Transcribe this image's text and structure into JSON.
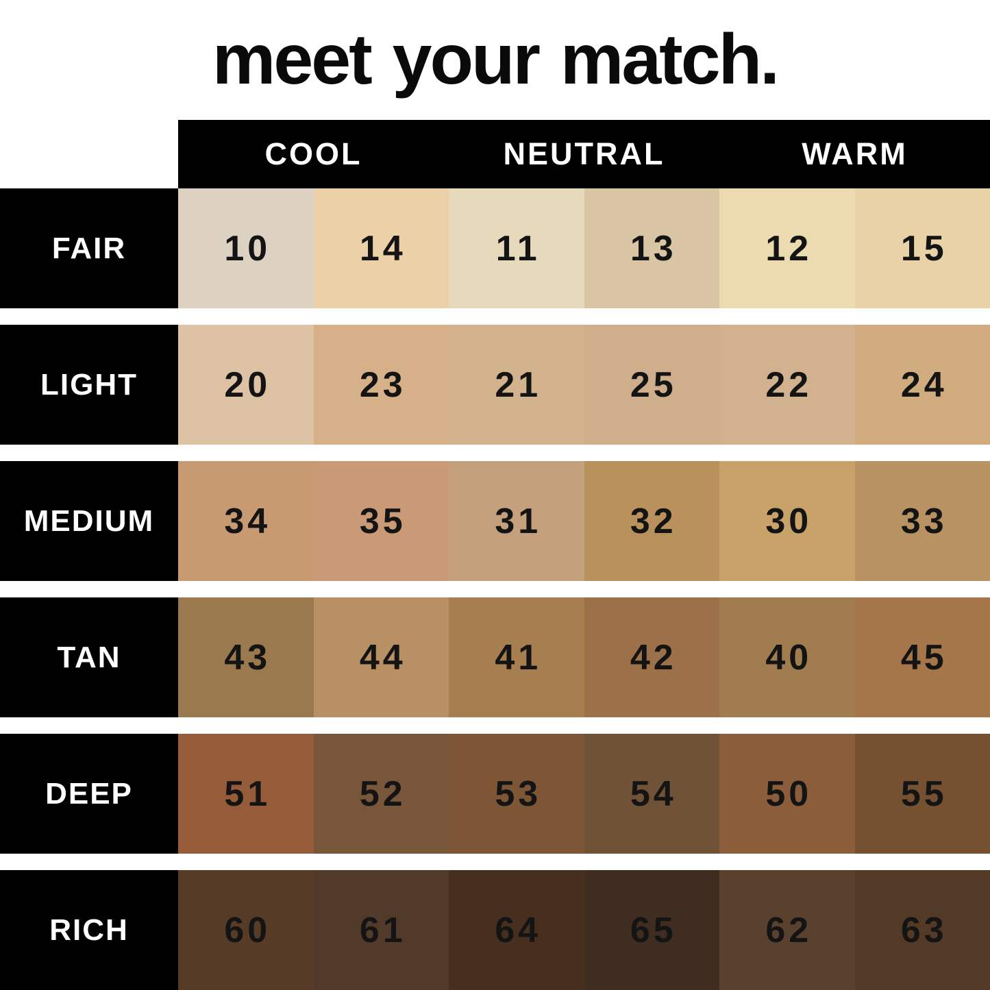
{
  "chart_data": {
    "type": "table",
    "title": "meet your match.",
    "column_groups": [
      "COOL",
      "NEUTRAL",
      "WARM"
    ],
    "row_labels": [
      "FAIR",
      "LIGHT",
      "MEDIUM",
      "TAN",
      "DEEP",
      "RICH"
    ],
    "rows": [
      {
        "label": "FAIR",
        "cells": [
          {
            "shade": "10",
            "color": "#ddd1c2"
          },
          {
            "shade": "14",
            "color": "#ecd0a8"
          },
          {
            "shade": "11",
            "color": "#e7d9bc"
          },
          {
            "shade": "13",
            "color": "#d9c5a4"
          },
          {
            "shade": "12",
            "color": "#ecdab0"
          },
          {
            "shade": "15",
            "color": "#e9d2a8"
          }
        ]
      },
      {
        "label": "LIGHT",
        "cells": [
          {
            "shade": "20",
            "color": "#ddc3a3"
          },
          {
            "shade": "23",
            "color": "#d5b088"
          },
          {
            "shade": "21",
            "color": "#d3b38e"
          },
          {
            "shade": "25",
            "color": "#cfae8b"
          },
          {
            "shade": "22",
            "color": "#d2b28e"
          },
          {
            "shade": "24",
            "color": "#d0ac7e"
          }
        ]
      },
      {
        "label": "MEDIUM",
        "cells": [
          {
            "shade": "34",
            "color": "#c79a72"
          },
          {
            "shade": "35",
            "color": "#ca9a77"
          },
          {
            "shade": "31",
            "color": "#c4a07c"
          },
          {
            "shade": "32",
            "color": "#b8915c"
          },
          {
            "shade": "30",
            "color": "#c9a269"
          },
          {
            "shade": "33",
            "color": "#b99264"
          }
        ]
      },
      {
        "label": "TAN",
        "cells": [
          {
            "shade": "43",
            "color": "#9b794e"
          },
          {
            "shade": "44",
            "color": "#b98f64"
          },
          {
            "shade": "41",
            "color": "#a67e4f"
          },
          {
            "shade": "42",
            "color": "#9c7048"
          },
          {
            "shade": "40",
            "color": "#a07c4f"
          },
          {
            "shade": "45",
            "color": "#a5764a"
          }
        ]
      },
      {
        "label": "DEEP",
        "cells": [
          {
            "shade": "51",
            "color": "#965c3a"
          },
          {
            "shade": "52",
            "color": "#775639"
          },
          {
            "shade": "53",
            "color": "#7d5635"
          },
          {
            "shade": "54",
            "color": "#705236"
          },
          {
            "shade": "50",
            "color": "#8c5d3a"
          },
          {
            "shade": "55",
            "color": "#755031"
          }
        ]
      },
      {
        "label": "RICH",
        "cells": [
          {
            "shade": "60",
            "color": "#563c27"
          },
          {
            "shade": "61",
            "color": "#523a2a"
          },
          {
            "shade": "64",
            "color": "#462f1e"
          },
          {
            "shade": "65",
            "color": "#3e2d20"
          },
          {
            "shade": "62",
            "color": "#5a412d"
          },
          {
            "shade": "63",
            "color": "#533a26"
          }
        ]
      }
    ],
    "layout": {
      "legend_position": "none",
      "grid": "off",
      "label_column_color": "#000000",
      "header_bar_color": "#000000",
      "header_text_color": "#ffffff",
      "number_text_color": "#141414",
      "background_color": "#ffffff"
    }
  }
}
